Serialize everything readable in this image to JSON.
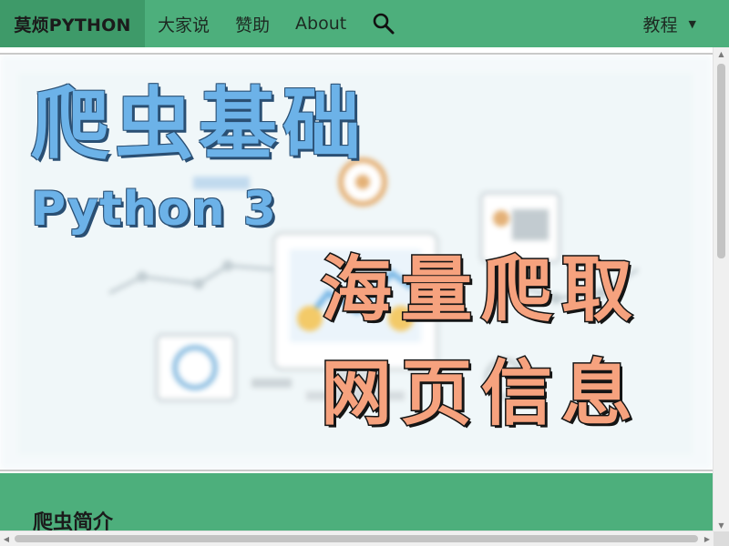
{
  "navbar": {
    "brand": "莫烦PYTHON",
    "links": [
      "大家说",
      "赞助",
      "About"
    ],
    "right_menu": "教程",
    "caret": "▼"
  },
  "hero": {
    "title": "爬虫基础",
    "subtitle": "Python 3",
    "slogan_line1": "海量爬取",
    "slogan_line2": "网页信息"
  },
  "section": {
    "title": "爬虫简介"
  },
  "colors": {
    "nav_green": "#4daf7c",
    "brand_green": "#3e9a69",
    "title_blue": "#6cb2e8",
    "slogan_orange": "#f6a27e"
  },
  "icons": {
    "search": "search-icon",
    "dropdown": "caret-down-icon"
  }
}
